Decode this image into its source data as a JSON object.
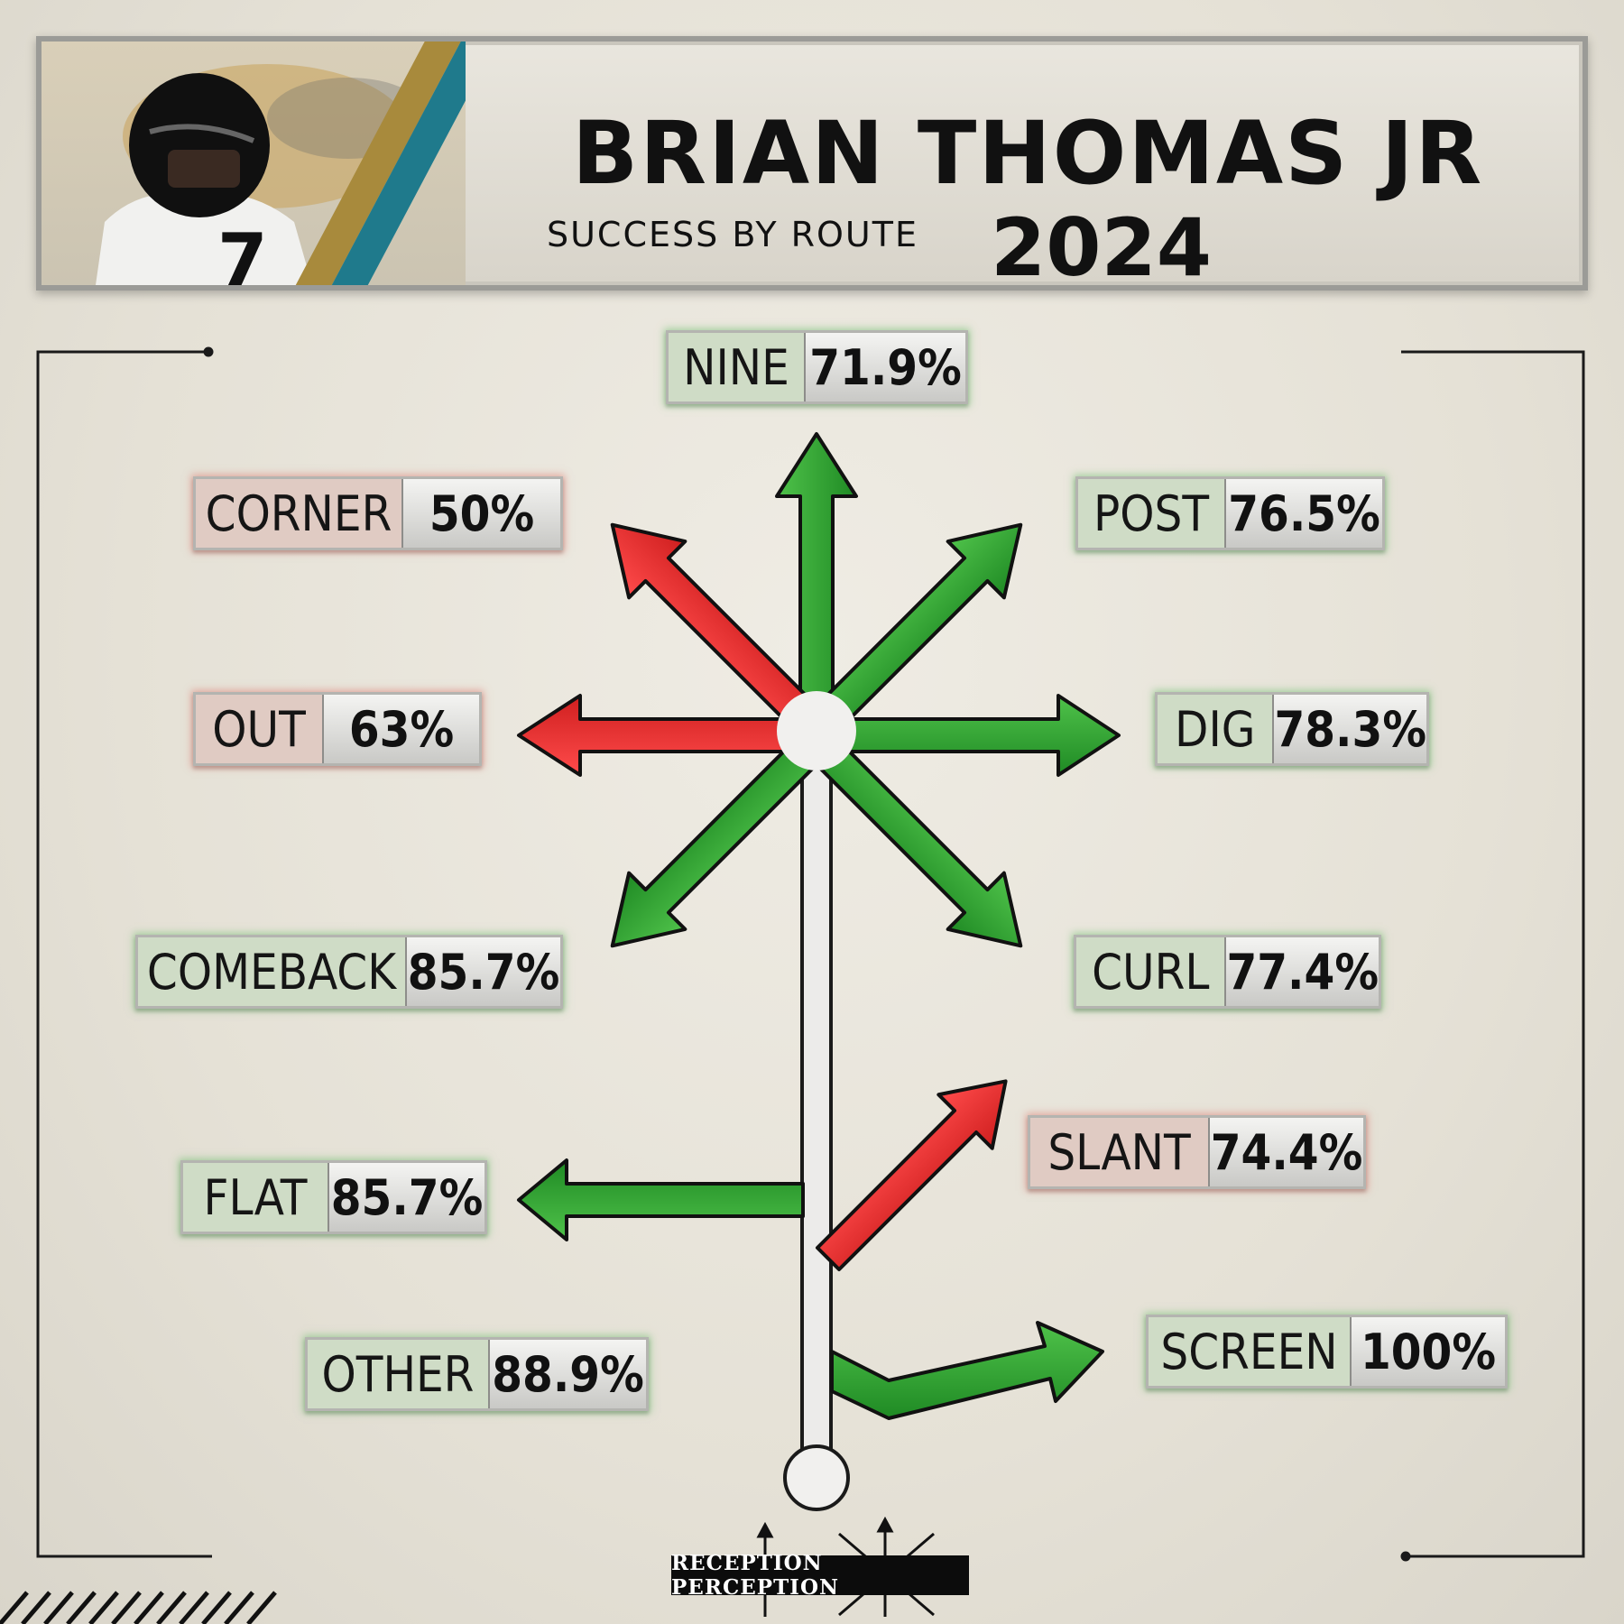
{
  "header": {
    "player_name": "BRIAN THOMAS JR",
    "subtitle": "SUCCESS BY ROUTE",
    "year": "2024",
    "jersey_number": "7"
  },
  "routes": [
    {
      "name": "NINE",
      "value": "71.9%",
      "status": "success"
    },
    {
      "name": "CORNER",
      "value": "50%",
      "status": "fail"
    },
    {
      "name": "POST",
      "value": "76.5%",
      "status": "success"
    },
    {
      "name": "OUT",
      "value": "63%",
      "status": "fail"
    },
    {
      "name": "DIG",
      "value": "78.3%",
      "status": "success"
    },
    {
      "name": "COMEBACK",
      "value": "85.7%",
      "status": "success"
    },
    {
      "name": "CURL",
      "value": "77.4%",
      "status": "success"
    },
    {
      "name": "SLANT",
      "value": "74.4%",
      "status": "fail"
    },
    {
      "name": "FLAT",
      "value": "85.7%",
      "status": "success"
    },
    {
      "name": "OTHER",
      "value": "88.9%",
      "status": "success"
    },
    {
      "name": "SCREEN",
      "value": "100%",
      "status": "success"
    }
  ],
  "colors": {
    "success": "#2e9e2e",
    "fail": "#e02a2a",
    "stem": "#ecebea"
  },
  "brand": {
    "logo_text": "RECEPTION PERCEPTION"
  }
}
